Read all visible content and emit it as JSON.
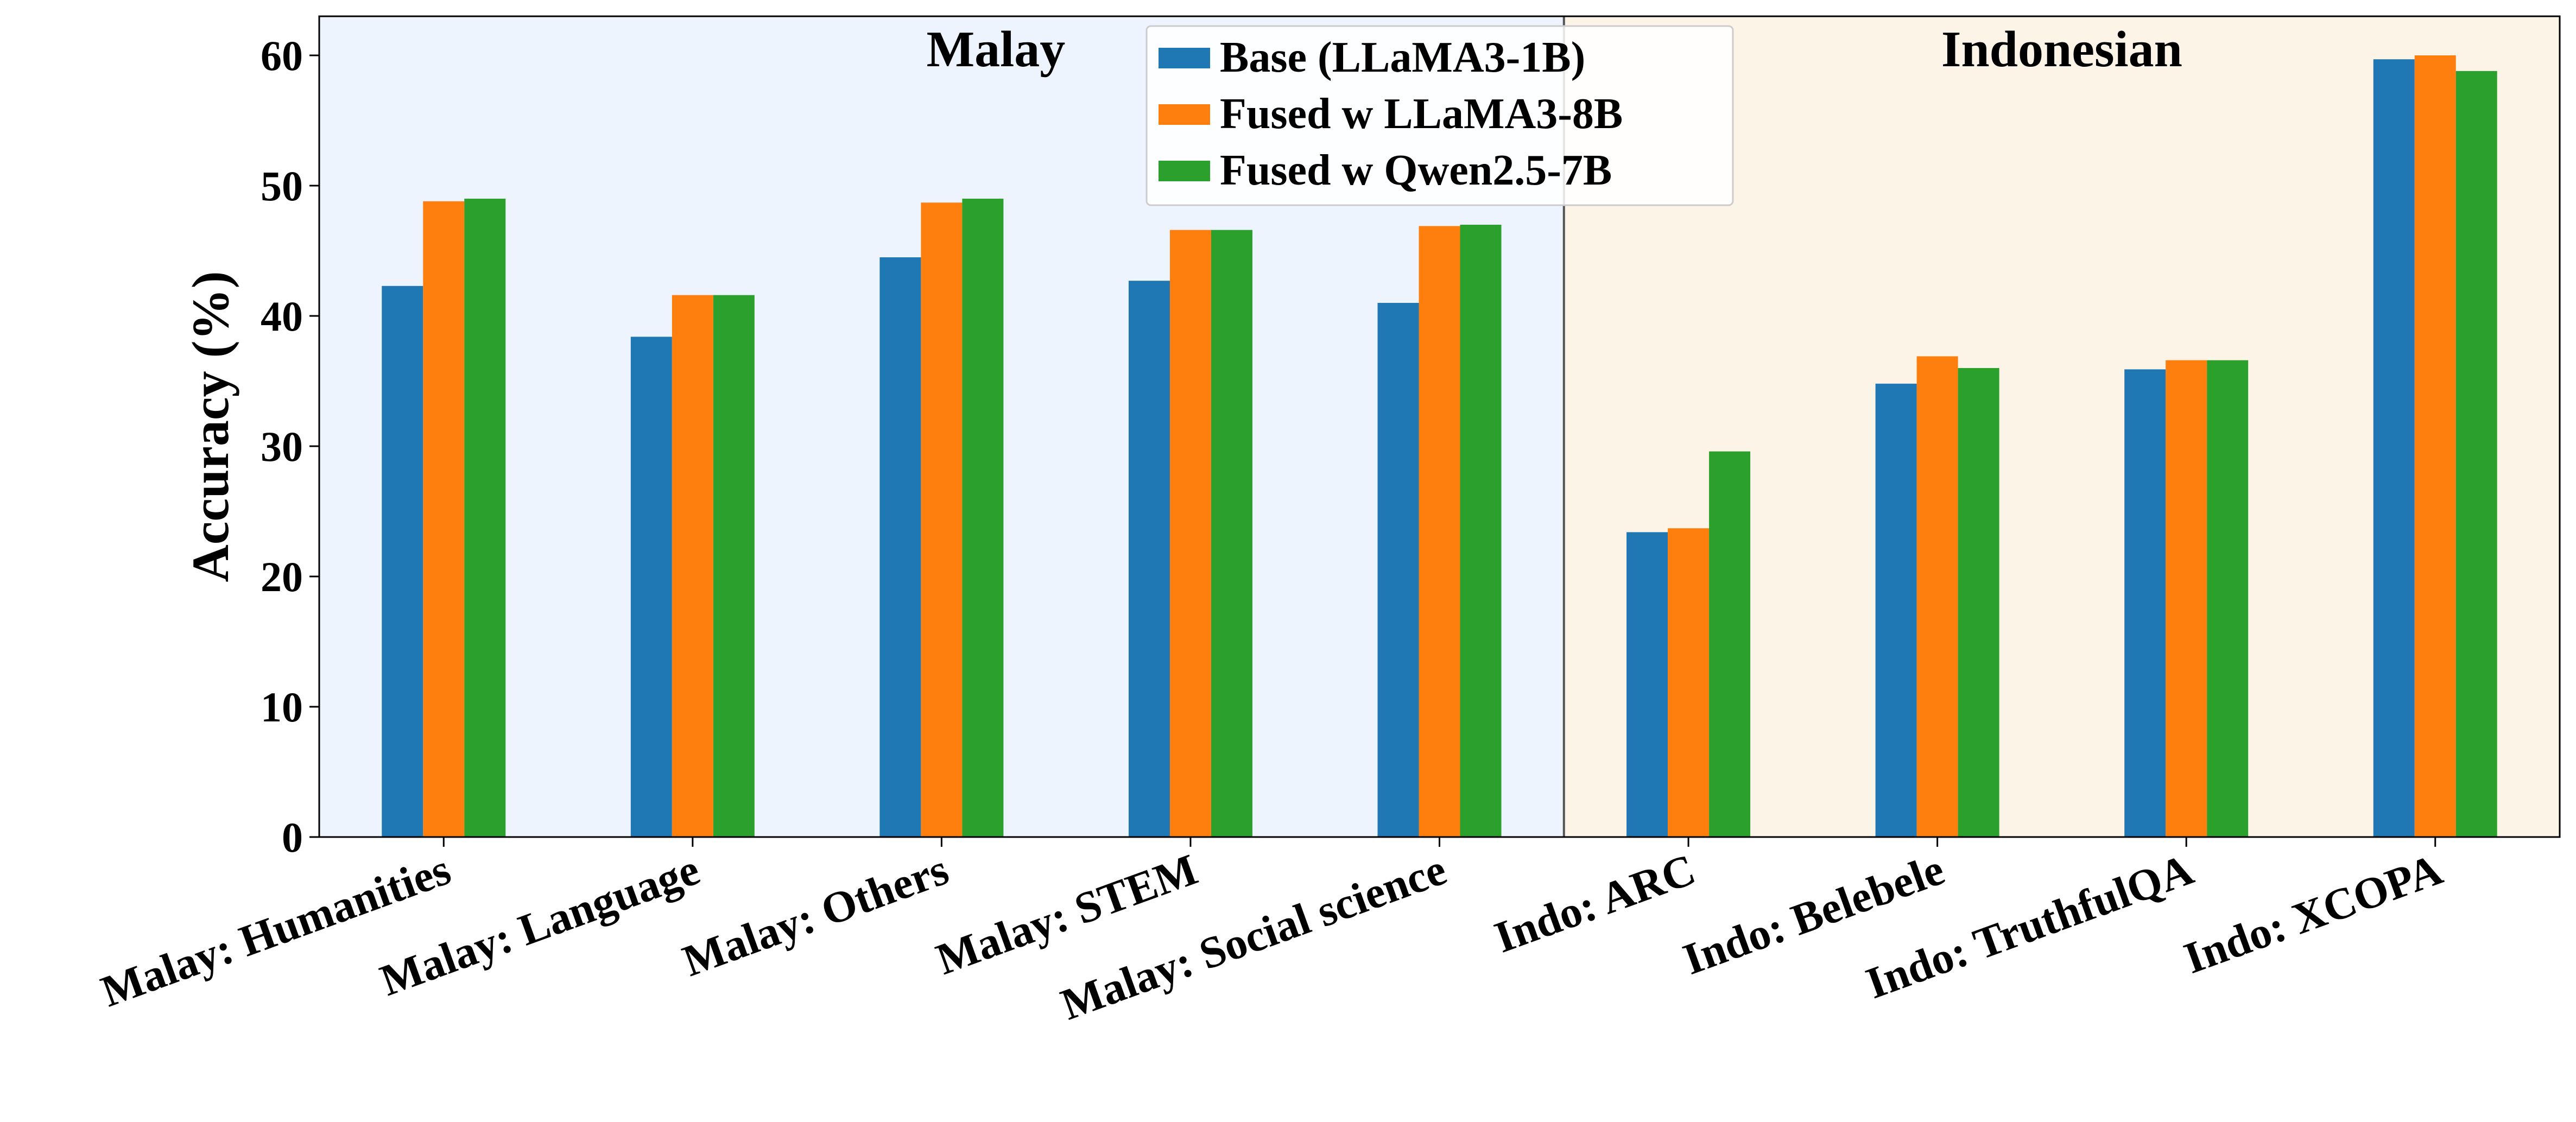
{
  "chart_data": {
    "type": "bar",
    "title": "",
    "xlabel": "",
    "ylabel": "Accuracy (%)",
    "ylim": [
      0,
      63
    ],
    "yticks": [
      0,
      10,
      20,
      30,
      40,
      50,
      60
    ],
    "grid": false,
    "legend_position": "top-center",
    "categories": [
      "Malay: Humanities",
      "Malay: Language",
      "Malay: Others",
      "Malay: STEM",
      "Malay: Social science",
      "Indo: ARC",
      "Indo: Belebele",
      "Indo: TruthfulQA",
      "Indo: XCOPA"
    ],
    "series": [
      {
        "name": "Base (LLaMA3-1B)",
        "color": "#1f77b4",
        "values": [
          42.3,
          38.4,
          44.5,
          42.7,
          41.0,
          23.4,
          34.8,
          35.9,
          59.7
        ]
      },
      {
        "name": "Fused w LLaMA3-8B",
        "color": "#ff7f0e",
        "values": [
          48.8,
          41.6,
          48.7,
          46.6,
          46.9,
          23.7,
          36.9,
          36.6,
          60.0
        ]
      },
      {
        "name": "Fused w Qwen2.5-7B",
        "color": "#2ca02c",
        "values": [
          49.0,
          41.6,
          49.0,
          46.6,
          47.0,
          29.6,
          36.0,
          36.6,
          58.8
        ]
      }
    ],
    "regions": [
      {
        "label": "Malay",
        "color": "#eef4fd",
        "start_index": 0,
        "end_index": 4
      },
      {
        "label": "Indonesian",
        "color": "#fdf4e8",
        "start_index": 5,
        "end_index": 8
      }
    ]
  }
}
